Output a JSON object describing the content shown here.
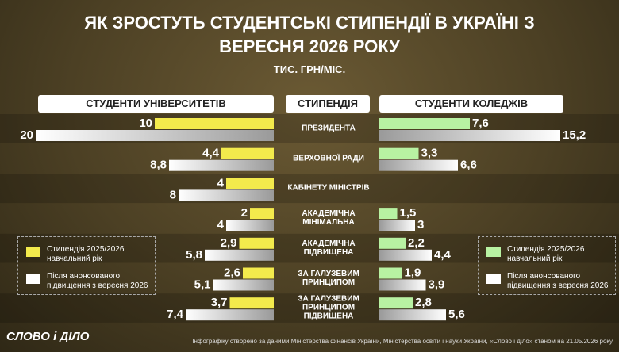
{
  "chart_data": {
    "type": "butterfly",
    "title": "ЯК ЗРОСТУТЬ СТУДЕНТСЬКІ СТИПЕНДІЇ В УКРАЇНІ З ВЕРЕСНЯ 2026 РОКУ",
    "subtitle": "ТИС. ГРН/МІС.",
    "categories_header": "СТИПЕНДІЯ",
    "categories": [
      "ПРЕЗИДЕНТА",
      "ВЕРХОВНОЇ РАДИ",
      "КАБІНЕТУ МІНІСТРІВ",
      "АКАДЕМІЧНА МІНІМАЛЬНА",
      "АКАДЕМІЧНА ПІДВИЩЕНА",
      "ЗА ГАЛУЗЕВИМ ПРИНЦИПОМ",
      "ЗА ГАЛУЗЕВИМ ПРИНЦИПОМ ПІДВИЩЕНА"
    ],
    "left": {
      "title": "СТУДЕНТИ УНІВЕРСИТЕТІВ",
      "series": [
        {
          "name": "Стипендія 2025/2026 навчальний рік",
          "color": "#f3ea4c",
          "values": [
            10,
            4.4,
            4,
            2,
            2.9,
            2.6,
            3.7
          ],
          "value_labels": [
            "10",
            "4,4",
            "4",
            "2",
            "2,9",
            "2,6",
            "3,7"
          ]
        },
        {
          "name": "Після анонсованого підвищення з вересня 2026",
          "color": "#ffffff",
          "values": [
            20,
            8.8,
            8,
            4,
            5.8,
            5.1,
            7.4
          ],
          "value_labels": [
            "20",
            "8,8",
            "8",
            "4",
            "5,8",
            "5,1",
            "7,4"
          ]
        }
      ]
    },
    "right": {
      "title": "СТУДЕНТИ КОЛЕДЖІВ",
      "series": [
        {
          "name": "Стипендія 2025/2026 навчальний рік",
          "color": "#b8f2a2",
          "values": [
            7.6,
            3.3,
            null,
            1.5,
            2.2,
            1.9,
            2.8
          ],
          "value_labels": [
            "7,6",
            "3,3",
            null,
            "1,5",
            "2,2",
            "1,9",
            "2,8"
          ]
        },
        {
          "name": "Після анонсованого підвищення з вересня 2026",
          "color": "#ffffff",
          "values": [
            15.2,
            6.6,
            null,
            3,
            4.4,
            3.9,
            5.6
          ],
          "value_labels": [
            "15,2",
            "6,6",
            null,
            "3",
            "4,4",
            "3,9",
            "5,6"
          ]
        }
      ]
    },
    "logo": "СЛОВО і ДІЛО",
    "source": "Інфографіку створено за даними Міністерства фінансів України, Міністерства освіти і науки України, «Слово і діло» станом на 21.05.2026 року"
  }
}
